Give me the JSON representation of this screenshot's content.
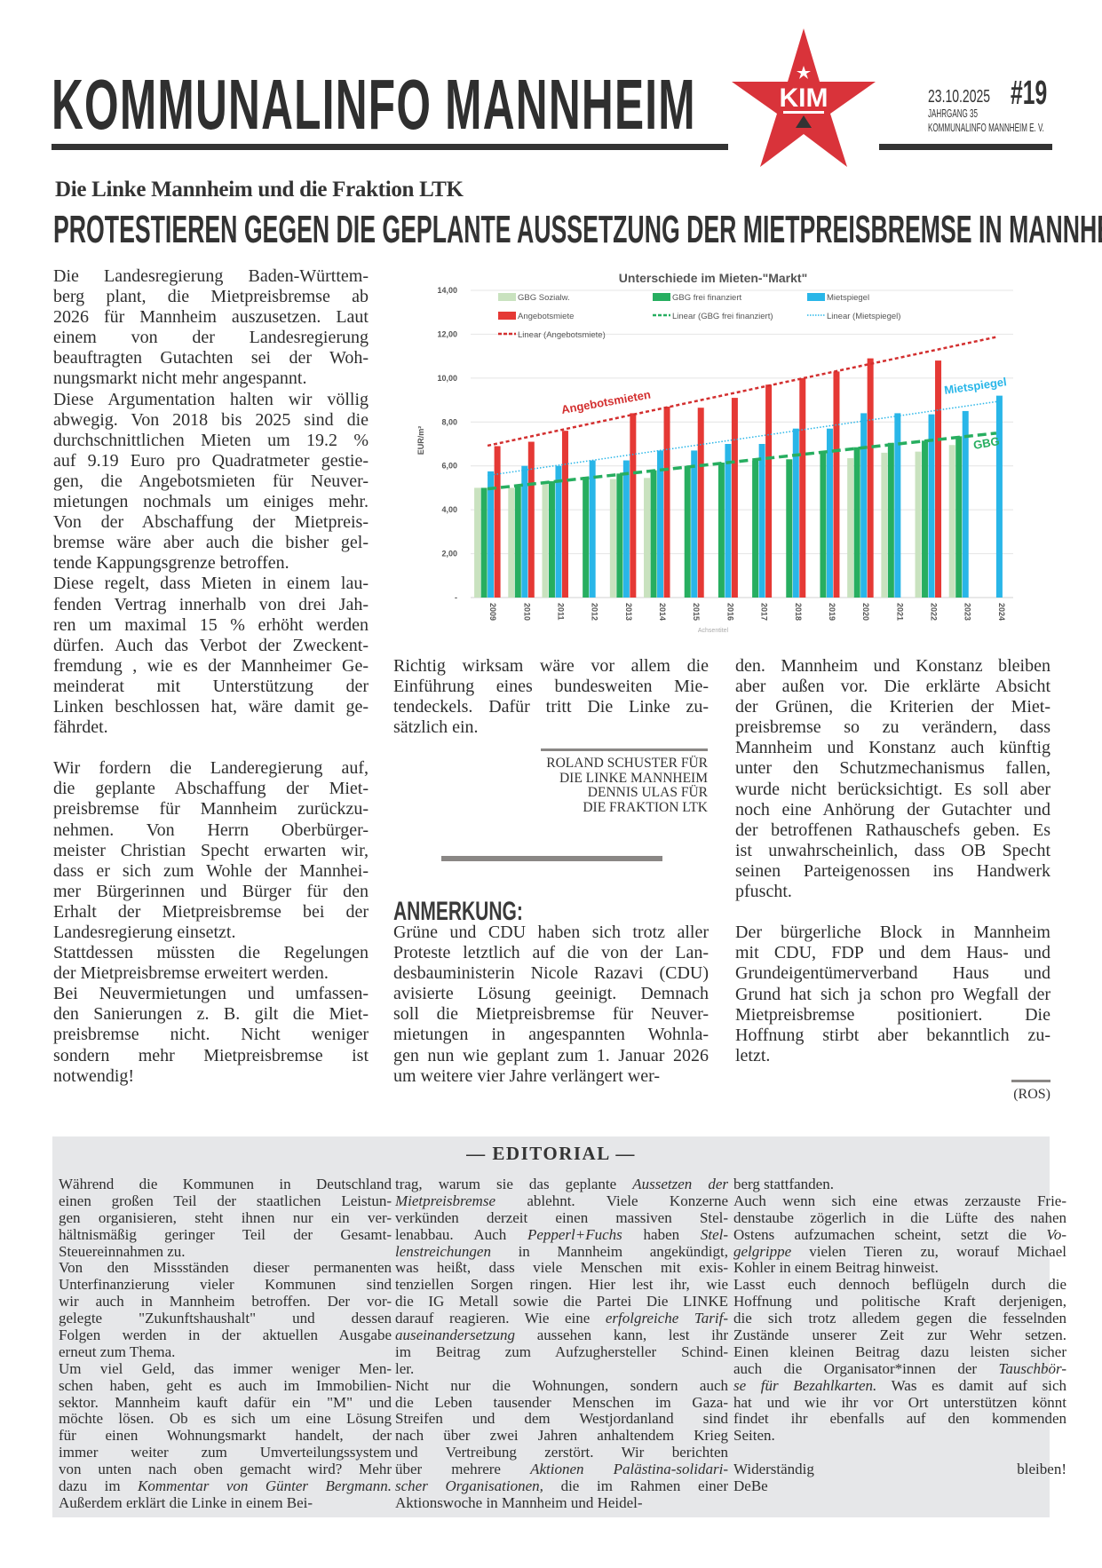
{
  "masthead": {
    "title": "KOMMUNALINFO MANNHEIM",
    "logo_text": "KIM",
    "date": "23.10.2025",
    "issue": "#19",
    "volume": "JAHRGANG 35",
    "publisher": "KOMMUNALINFO MANNHEIM E. V.",
    "logo_color": "#d9333a"
  },
  "article": {
    "kicker": "Die Linke Mannheim und die Fraktion LTK",
    "headline": "PROTESTIEREN GEGEN DIE GEPLANTE AUSSETZUNG DER MIETPREISBREMSE IN MANNHEIM",
    "left_column": [
      [
        "Die Landesregierung Baden-Württem-",
        "berg plant, die Mietpreisbremse ab",
        "2026 für Mannheim auszusetzen. Laut",
        "einem von der Landesregierung",
        "beauftragten Gutachten sei der Woh-",
        "nungsmarkt nicht mehr angespannt."
      ],
      [
        "Diese Argumentation halten wir völlig",
        "abwegig. Von 2018 bis 2025 sind die",
        "durchschnittlichen Mieten um 19.2 %",
        "auf 9.19 Euro pro Quadratmeter gestie-",
        "gen, die Angebotsmieten für Neuver-",
        "mietungen nochmals um einiges mehr.",
        "Von der Abschaffung der Mietpreis-",
        "bremse wäre aber auch die bisher gel-",
        "tende Kappungsgrenze betroffen."
      ],
      [
        "Diese regelt, dass Mieten in einem lau-",
        "fenden Vertrag innerhalb von drei Jah-",
        "ren um maximal 15 % erhöht werden",
        "dürfen. Auch das Verbot der Zweckent-",
        "fremdung , wie es der Mannheimer Ge-",
        "meinderat mit Unterstützung der",
        "Linken beschlossen hat, wäre damit ge-",
        "fährdet."
      ],
      null,
      [
        "Wir fordern die Landeregierung auf,",
        "die geplante Abschaffung der Miet-",
        "preisbremse für Mannheim zurückzu-",
        "nehmen. Von Herrn Oberbürger-",
        "meister Christian Specht erwarten wir,",
        "dass er sich zum Wohle der Mannhei-",
        "mer Bürgerinnen und Bürger für den",
        "Erhalt der Mietpreisbremse bei der",
        "Landesregierung einsetzt."
      ],
      [
        "Stattdessen müssten die Regelungen",
        "der Mietpreisbremse erweitert werden."
      ],
      [
        "Bei Neuvermietungen und umfassen-",
        "den Sanierungen z. B. gilt die Miet-",
        "preisbremse nicht. Nicht weniger",
        "sondern mehr Mietpreisbremse ist",
        "notwendig!"
      ]
    ],
    "middle_column": [
      [
        "Richtig wirksam wäre vor allem die",
        "Einführung eines bundesweiten Mie-",
        "tendeckels. Dafür tritt Die Linke zu-",
        "sätzlich ein."
      ]
    ],
    "signature": [
      "ROLAND SCHUSTER FÜR",
      "DIE LINKE MANNHEIM",
      "DENNIS ULAS FÜR",
      "DIE FRAKTION LTK"
    ]
  },
  "note": {
    "heading": "ANMERKUNG:",
    "middle_column": [
      [
        "Grüne und CDU haben sich trotz aller",
        "Proteste letztlich auf die von der Lan-",
        "desbauministerin Nicole Razavi (CDU)",
        "avisierte Lösung geeinigt. Demnach",
        "soll die Mietpreisbremse für Neuver-",
        "mietungen in angespannten Wohnla-",
        "gen nun wie geplant zum 1. Januar 2026",
        "um weitere vier Jahre verlängert wer-"
      ]
    ],
    "right_column": [
      [
        "den. Mannheim und Konstanz bleiben",
        "aber außen vor. Die erklärte Absicht",
        "der Grünen, die Kriterien der Miet-",
        "preisbremse so zu verändern, dass",
        "Mannheim und Konstanz auch künftig",
        "unter den Schutzmechanismus fallen,",
        "wurde nicht berücksichtigt. Es soll aber",
        "noch eine Anhörung der Gutachter und",
        "der betroffenen Rathauschefs geben. Es",
        "ist unwahrscheinlich, dass OB Specht",
        "seinen Parteigenossen ins Handwerk",
        "pfuscht."
      ],
      null,
      [
        "Der bürgerliche Block in Mannheim",
        "mit CDU, FDP und dem Haus- und",
        "Grundeigentümerverband Haus und",
        "Grund hat sich ja schon pro Wegfall der",
        "Mietpreisbremse positioniert. Die",
        "Hoffnung stirbt aber bekanntlich zu-",
        "letzt."
      ]
    ],
    "author": "(ROS)"
  },
  "editorial": {
    "title": "— EDITORIAL —",
    "columns": [
      [
        [
          "Während die Kommunen in Deutschland",
          "einen großen Teil der staatlichen Leistun-",
          "gen organisieren, steht ihnen nur ein ver-",
          "hältnismäßig geringer Teil der Gesamt-",
          "Steuereinnahmen zu."
        ],
        [
          "Von den Missständen dieser permanenten",
          "Unterfinanzierung vieler Kommunen sind",
          "wir auch in Mannheim betroffen. Der vor-",
          "gelegte \"Zukunftshaushalt\" und dessen",
          "Folgen werden in der aktuellen Ausgabe",
          "erneut zum Thema."
        ],
        [
          "Um viel Geld, das immer weniger Men-",
          "schen haben, geht es auch im Immobilien-",
          "sektor. Mannheim kauft dafür ein \"M\" und",
          "möchte lösen. Ob es sich um eine Lösung",
          "für einen Wohnungsmarkt handelt, der",
          "immer weiter zum Umverteilungssystem",
          "von unten nach oben gemacht wird? Mehr",
          "dazu im _Kommentar von Günter Bergmann._",
          "Außerdem erklärt die Linke in einem Bei-"
        ]
      ],
      [
        [
          "trag, warum sie das geplante _Aussetzen der_",
          "_Mietpreisbremse_ ablehnt. Viele Konzerne",
          "verkünden derzeit einen massiven Stel-",
          "lenabbau. Auch _Pepperl+Fuchs_ haben _Stel-_",
          "_lenstreichungen_ in Mannheim angekündigt,",
          "was heißt, dass viele Menschen mit exis-",
          "tenziellen Sorgen ringen. Hier lest ihr, wie",
          "die IG Metall sowie die Partei Die LINKE",
          "darauf reagieren. Wie eine _erfolgreiche Tarif-_",
          "_auseinandersetzung_ aussehen kann, lest ihr",
          "im Beitrag zum Aufzughersteller Schind-",
          "ler."
        ],
        [
          "Nicht nur die Wohnungen, sondern auch",
          "die Leben tausender Menschen im Gaza-",
          "Streifen und dem Westjordanland sind",
          "nach über zwei Jahren anhaltendem Krieg",
          "und Vertreibung zerstört. Wir berichten",
          "über mehrere _Aktionen Palästina-solidari-_",
          "_scher Organisationen,_ die im Rahmen einer",
          "Aktionswoche in Mannheim und Heidel-"
        ]
      ],
      [
        [
          "berg stattfanden."
        ],
        [
          "Auch wenn sich eine etwas zerzauste Frie-",
          "denstaube zögerlich in die Lüfte des nahen",
          "Ostens aufzumachen scheint, setzt die _Vo-_",
          "_gelgrippe_ vielen Tieren zu, worauf Michael",
          "Kohler in einem Beitrag hinweist."
        ],
        [
          "Lasst euch dennoch beflügeln durch die",
          "Hoffnung und politische Kraft derjenigen,",
          "die sich trotz alledem gegen die fesselnden",
          "Zustände unserer Zeit zur Wehr setzen.",
          "Einen kleinen Beitrag dazu leisten sicher",
          "auch die Organisator*innen der _Tauschbör-_",
          "_se für Bezahlkarten._ Was es damit auf sich",
          "hat und wie ihr vor Ort unterstützen könnt",
          "findet ihr ebenfalls auf den kommenden",
          "Seiten."
        ],
        null,
        [
          "Widerständig bleiben!",
          "DeBe"
        ]
      ]
    ]
  },
  "chart_data": {
    "type": "bar",
    "title": "Unterschiede im Mieten-\"Markt\"",
    "xlabel": "Achsentitel",
    "ylabel": "EUR/m²",
    "ylim": [
      0,
      14
    ],
    "yticks": [
      "-",
      "2,00",
      "4,00",
      "6,00",
      "8,00",
      "10,00",
      "12,00",
      "14,00"
    ],
    "grid": true,
    "legend_position": "top",
    "categories": [
      "2009",
      "2010",
      "2011",
      "2012",
      "2013",
      "2014",
      "2015",
      "2016",
      "2017",
      "2018",
      "2019",
      "2020",
      "2021",
      "2022",
      "2023",
      "2024"
    ],
    "series": [
      {
        "name": "GBG Sozialw.",
        "color": "#c9e2bf",
        "values": [
          5.0,
          5.0,
          5.2,
          null,
          5.4,
          5.45,
          null,
          null,
          null,
          null,
          null,
          6.35,
          6.6,
          6.65,
          6.95,
          null
        ]
      },
      {
        "name": "GBG frei finanziert",
        "color": "#27ae60",
        "values": [
          5.0,
          5.05,
          5.3,
          5.5,
          5.65,
          5.8,
          6.0,
          6.15,
          6.25,
          6.3,
          6.65,
          6.85,
          7.05,
          7.15,
          7.35,
          null
        ]
      },
      {
        "name": "Mietspiegel",
        "color": "#29b6e8",
        "values": [
          5.75,
          6.0,
          6.0,
          6.25,
          6.25,
          6.7,
          6.7,
          7.0,
          7.0,
          7.7,
          7.7,
          8.4,
          8.4,
          8.35,
          8.5,
          9.2
        ]
      },
      {
        "name": "Angebotsmiete",
        "color": "#e53935",
        "values": [
          6.9,
          7.1,
          7.6,
          null,
          8.4,
          8.7,
          8.65,
          9.1,
          9.7,
          10.0,
          10.3,
          10.9,
          null,
          10.8,
          null,
          null
        ]
      }
    ],
    "trendlines": [
      {
        "name": "Linear (GBG frei finanziert)",
        "series": "GBG frei finanziert",
        "color": "#27ae60",
        "style": "dashed"
      },
      {
        "name": "Linear (Mietspiegel)",
        "series": "Mietspiegel",
        "color": "#29b6e8",
        "style": "dotted"
      },
      {
        "name": "Linear (Angebotsmiete)",
        "series": "Angebotsmiete",
        "color": "#d32f2f",
        "style": "dashed"
      }
    ],
    "annotations": [
      "Angebotsmieten",
      "Mietspiegel",
      "GBG"
    ]
  }
}
